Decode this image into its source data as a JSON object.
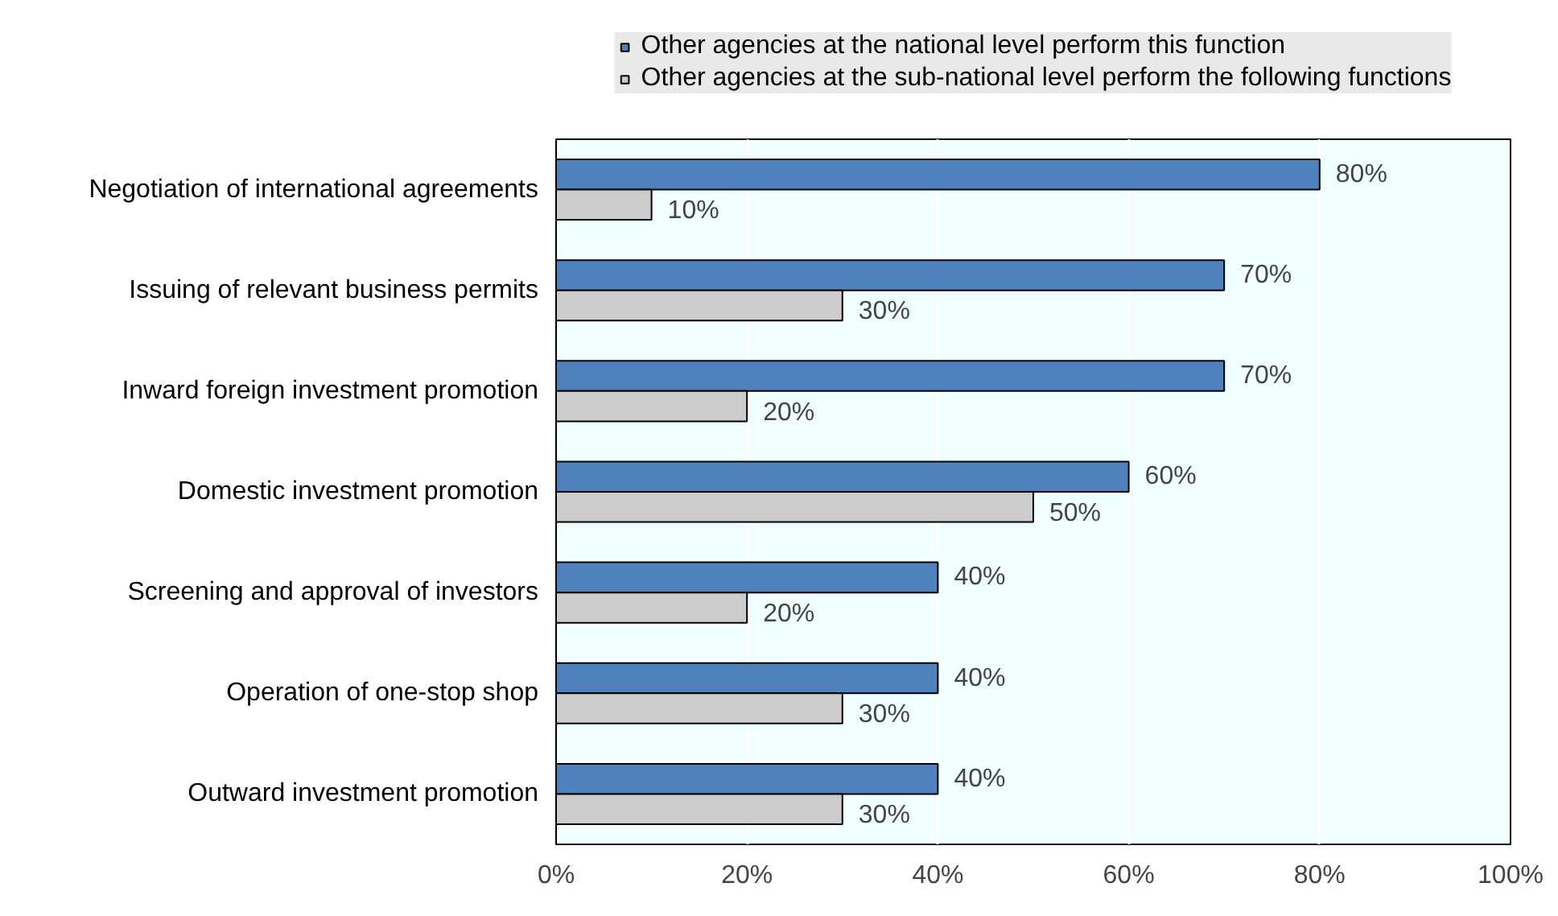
{
  "chart_data": {
    "type": "bar",
    "orientation": "horizontal",
    "categories": [
      "Negotiation of international agreements",
      "Issuing of relevant business permits",
      "Inward foreign investment promotion",
      "Domestic investment promotion",
      "Screening and approval of investors",
      "Operation of one-stop shop",
      "Outward investment promotion"
    ],
    "series": [
      {
        "name": "Other agencies at the national level perform this function",
        "color": "#4f81bd",
        "values": [
          80,
          70,
          70,
          60,
          40,
          40,
          40
        ],
        "value_labels": [
          "80%",
          "70%",
          "70%",
          "60%",
          "40%",
          "40%",
          "40%"
        ]
      },
      {
        "name": "Other agencies at the sub-national level perform the following functions",
        "color": "#cccccc",
        "values": [
          10,
          30,
          20,
          50,
          20,
          30,
          30
        ],
        "value_labels": [
          "10%",
          "30%",
          "20%",
          "50%",
          "20%",
          "30%",
          "30%"
        ]
      }
    ],
    "xlim": [
      0,
      100
    ],
    "xticks": [
      {
        "value": 0,
        "label": "0%"
      },
      {
        "value": 20,
        "label": "20%"
      },
      {
        "value": 40,
        "label": "40%"
      },
      {
        "value": 60,
        "label": "60%"
      },
      {
        "value": 80,
        "label": "80%"
      },
      {
        "value": 100,
        "label": "100%"
      }
    ],
    "grid": "x",
    "legend": "top"
  }
}
